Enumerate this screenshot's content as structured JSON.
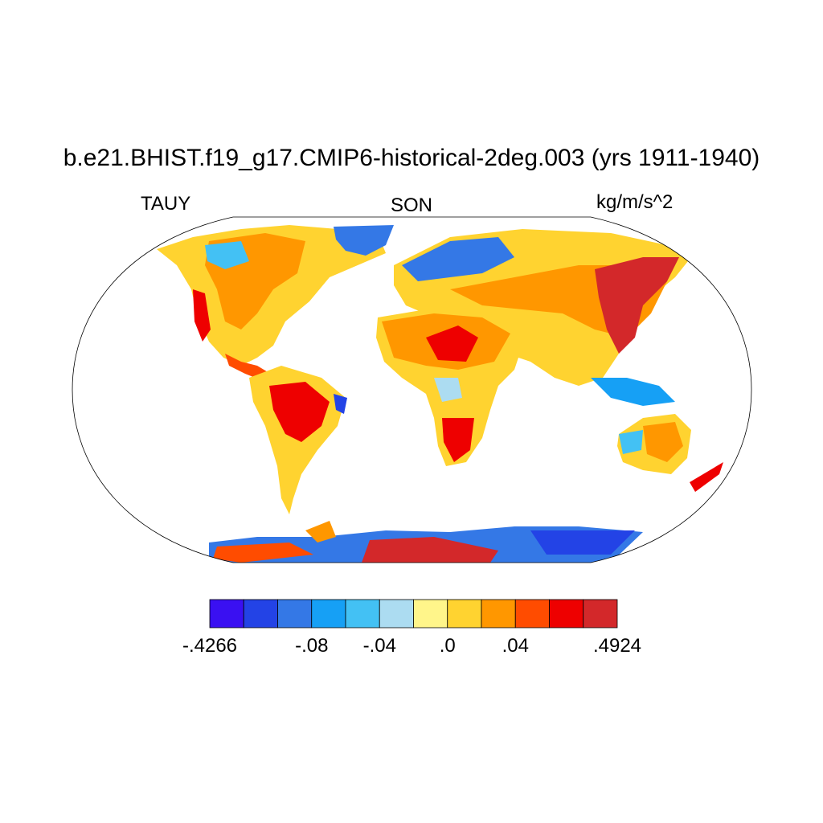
{
  "title": "b.e21.BHIST.f19_g17.CMIP6-historical-2deg.003 (yrs 1911-1940)",
  "left_label": "TAUY",
  "center_label": "SON",
  "right_label": "kg/m/s^2",
  "colorbar": {
    "colors": [
      "#3a10f2",
      "#2343e6",
      "#3478e6",
      "#16a0f5",
      "#43c1f4",
      "#acdcf1",
      "#fff58a",
      "#ffd330",
      "#ff9700",
      "#ff4c00",
      "#ee0000",
      "#d3282a"
    ],
    "labels": [
      {
        "text": "-.4266",
        "boundary": 0
      },
      {
        "text": "-.08",
        "boundary": 3
      },
      {
        "text": "-.04",
        "boundary": 5
      },
      {
        "text": ".0",
        "boundary": 7
      },
      {
        "text": ".04",
        "boundary": 9
      },
      {
        "text": ".4924",
        "boundary": 12
      }
    ]
  }
}
